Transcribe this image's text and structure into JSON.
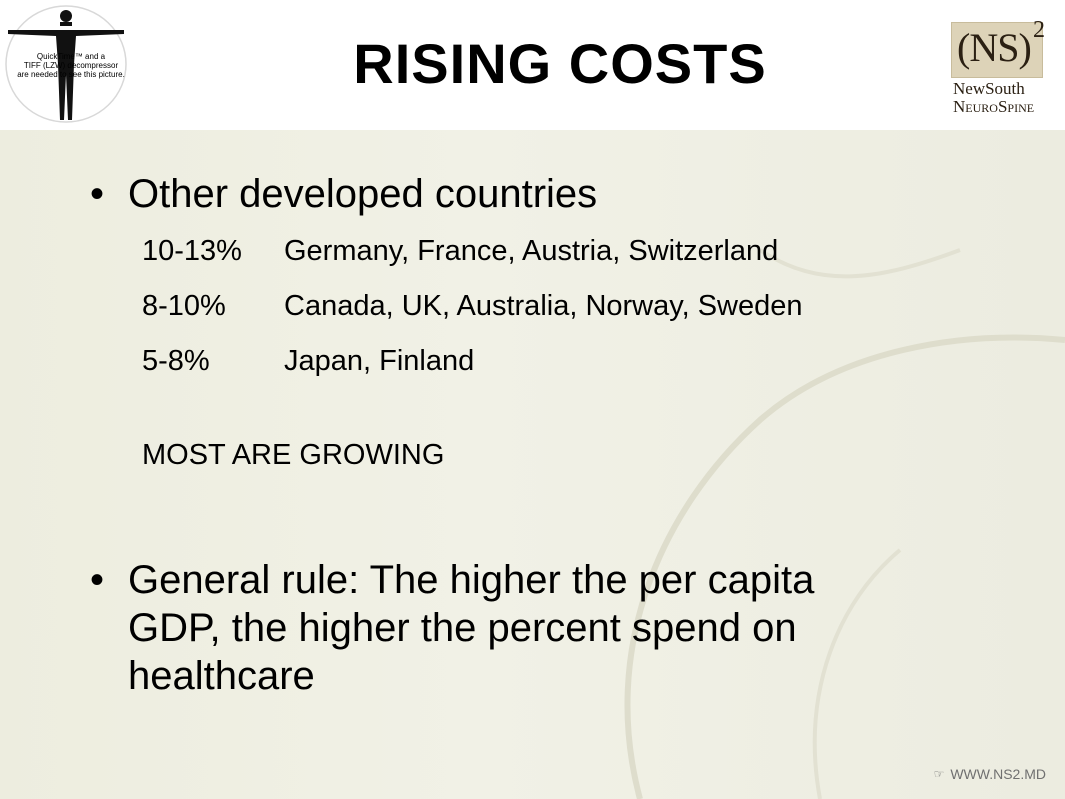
{
  "title": "RISING COSTS",
  "figure": {
    "placeholder_lines": [
      "QuickTime™ and a",
      "TIFF (LZW) decompressor",
      "are needed to see this picture."
    ]
  },
  "logo": {
    "main": "(NS)",
    "superscript": "2",
    "line1": "NewSouth",
    "line2": "NeuroSpine"
  },
  "bullets": [
    {
      "text": "Other developed countries",
      "items": [
        {
          "pct": "10-13%",
          "countries": "Germany, France, Austria, Switzerland"
        },
        {
          "pct": "8-10%",
          "countries": "Canada, UK, Australia, Norway, Sweden"
        },
        {
          "pct": "5-8%",
          "countries": "Japan, Finland"
        }
      ],
      "note": "MOST ARE GROWING"
    },
    {
      "text_lines": [
        "General rule:  The higher the per capita",
        "GDP, the higher the percent spend on",
        "healthcare"
      ]
    }
  ],
  "footer": {
    "icon": "hand-pointer-icon",
    "text": "WWW.NS2.MD"
  },
  "colors": {
    "body_background": "#efefe3",
    "logo_background": "#ddd3b8",
    "logo_text": "#2b2013",
    "footer_text": "#707070"
  }
}
